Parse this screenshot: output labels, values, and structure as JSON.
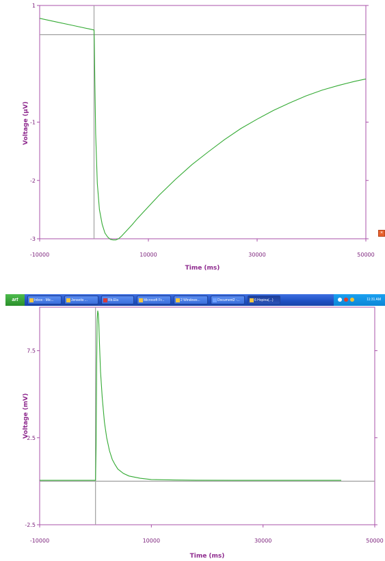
{
  "chart_data": [
    {
      "type": "line",
      "title": "",
      "xlabel": "Time (ms)",
      "ylabel": "Voltage (µV)",
      "xlim": [
        -10000,
        50000
      ],
      "ylim": [
        -3,
        1
      ],
      "x_ticks": [
        -10000,
        10000,
        30000,
        50000
      ],
      "x_tick_labels": [
        "-10000",
        "10000",
        "30000",
        "50000"
      ],
      "y_ticks": [
        -3,
        -2,
        -1,
        1
      ],
      "y_tick_labels": [
        "-3",
        "-2",
        "-1",
        "1"
      ],
      "reference_lines": {
        "horizontal_y": 0.5,
        "vertical_x": 0
      },
      "series": [
        {
          "color": "#33aa33",
          "x": [
            -10000,
            -7000,
            -4000,
            -1000,
            0,
            50,
            150,
            300,
            600,
            1000,
            1500,
            2000,
            2500,
            3000,
            3500,
            4000,
            4500,
            5000,
            6000,
            7000,
            8000,
            10000,
            12000,
            15000,
            18000,
            21000,
            24000,
            27000,
            30000,
            33000,
            36000,
            39000,
            42000,
            45000,
            48000,
            50000
          ],
          "y": [
            0.78,
            0.72,
            0.66,
            0.6,
            0.58,
            0.4,
            -0.3,
            -1.2,
            -2.05,
            -2.5,
            -2.75,
            -2.9,
            -2.97,
            -3.01,
            -3.02,
            -3.02,
            -3.0,
            -2.96,
            -2.86,
            -2.76,
            -2.65,
            -2.45,
            -2.25,
            -1.98,
            -1.73,
            -1.51,
            -1.3,
            -1.11,
            -0.95,
            -0.8,
            -0.67,
            -0.55,
            -0.45,
            -0.37,
            -0.3,
            -0.26
          ]
        }
      ]
    },
    {
      "type": "line",
      "title": "",
      "xlabel": "Time (ms)",
      "ylabel": "Voltage (mV)",
      "xlim": [
        -10000,
        50000
      ],
      "ylim": [
        -2.5,
        10
      ],
      "x_ticks": [
        -10000,
        10000,
        30000,
        50000
      ],
      "x_tick_labels": [
        "-10000",
        "10000",
        "30000",
        "50000"
      ],
      "y_ticks": [
        -2.5,
        2.5,
        7.5
      ],
      "y_tick_labels": [
        "-2.5",
        "2.5",
        "7.5"
      ],
      "reference_lines": {
        "horizontal_y": 0,
        "vertical_x": 0
      },
      "series": [
        {
          "color": "#33aa33",
          "x": [
            -10000,
            -1000,
            -200,
            0,
            100,
            200,
            300,
            400,
            500,
            600,
            700,
            900,
            1200,
            1600,
            2000,
            2500,
            3000,
            3500,
            4000,
            5000,
            6000,
            8000,
            10000,
            14000,
            18000,
            25000,
            32000,
            39000,
            44000
          ],
          "y": [
            0.05,
            0.05,
            0.05,
            0.05,
            2.0,
            6.5,
            9.3,
            9.8,
            9.6,
            9.0,
            8.0,
            6.3,
            4.8,
            3.4,
            2.5,
            1.75,
            1.25,
            0.95,
            0.7,
            0.45,
            0.3,
            0.17,
            0.1,
            0.07,
            0.06,
            0.05,
            0.05,
            0.05,
            0.05
          ]
        }
      ]
    }
  ],
  "taskbar": {
    "start_label": "art",
    "buttons": [
      "Inbox - Mic...",
      "Jenseits ...",
      "Rb.Ela",
      "Microsoft Fr...",
      "2 Windows...",
      "Document2 -...",
      "6 Hopina(...)"
    ],
    "clock": "11:31 AM"
  },
  "colors": {
    "axis": "#a850a8",
    "tick_text": "#7a1f7a",
    "series": "#33aa33",
    "refline": "#a0a0a0"
  }
}
